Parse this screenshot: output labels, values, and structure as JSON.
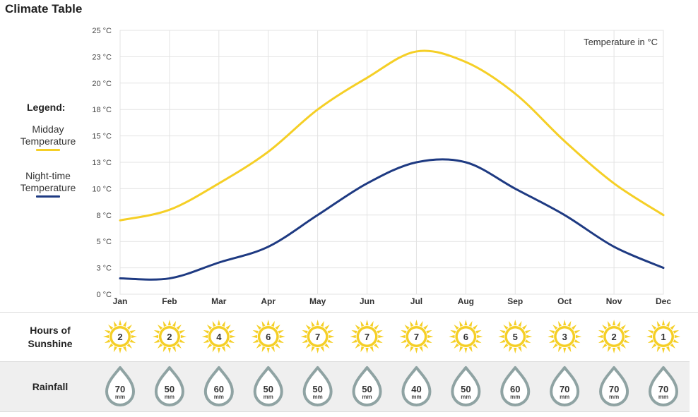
{
  "title": "Climate Table",
  "legend": {
    "heading": "Legend:",
    "items": [
      {
        "line1": "Midday",
        "line2": "Temperature",
        "color": "#f5cf26"
      },
      {
        "line1": "Night-time",
        "line2": "Temperature",
        "color": "#1e3a82"
      }
    ]
  },
  "chart_data": {
    "type": "line",
    "title": "Climate Table",
    "annotation": "Temperature in °C",
    "categories": [
      "Jan",
      "Feb",
      "Mar",
      "Apr",
      "May",
      "Jun",
      "Jul",
      "Aug",
      "Sep",
      "Oct",
      "Nov",
      "Dec"
    ],
    "y_ticks": [
      "0 °C",
      "3 °C",
      "5 °C",
      "8 °C",
      "10 °C",
      "13 °C",
      "15 °C",
      "18 °C",
      "20 °C",
      "23 °C",
      "25 °C"
    ],
    "ylim": [
      0,
      25
    ],
    "grid": true,
    "legend_position": "left",
    "series": [
      {
        "name": "Midday Temperature",
        "color": "#f5cf26",
        "values": [
          7,
          8,
          10.5,
          13.5,
          17.5,
          20.5,
          23,
          22,
          19,
          14.5,
          10.5,
          7.5
        ]
      },
      {
        "name": "Night-time Temperature",
        "color": "#1e3a82",
        "values": [
          1.5,
          1.5,
          3,
          4.5,
          7.5,
          10.5,
          12.5,
          12.5,
          10,
          7.5,
          4.5,
          2.5
        ]
      }
    ]
  },
  "sunshine": {
    "label_line1": "Hours of",
    "label_line2": "Sunshine",
    "color": "#f5cf26",
    "values": [
      2,
      2,
      4,
      6,
      7,
      7,
      7,
      6,
      5,
      3,
      2,
      1
    ]
  },
  "rainfall": {
    "label": "Rainfall",
    "unit": "mm",
    "color": "#8fa3a3",
    "values": [
      70,
      50,
      60,
      50,
      50,
      50,
      40,
      50,
      60,
      70,
      70,
      70
    ]
  }
}
